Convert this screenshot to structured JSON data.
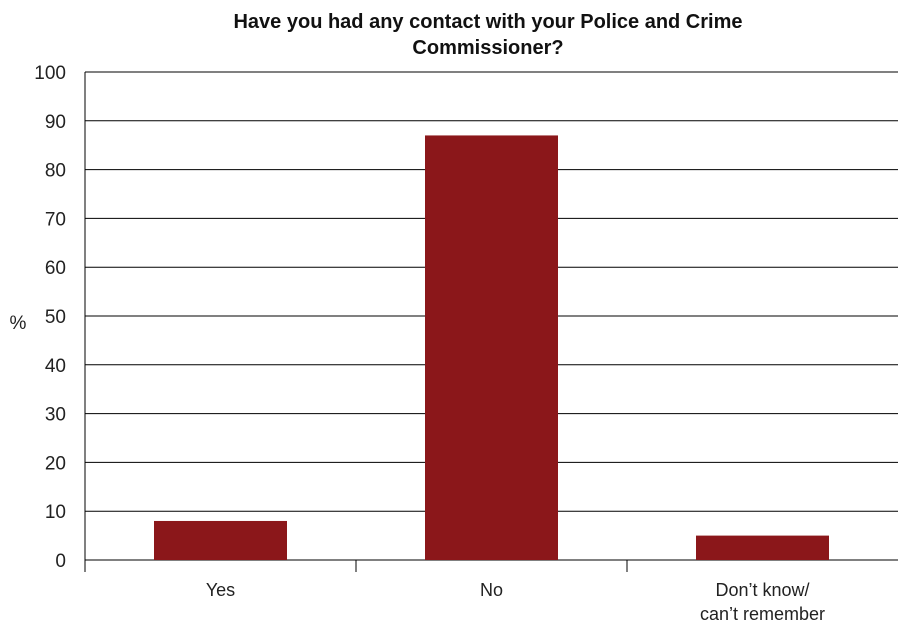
{
  "chart_data": {
    "type": "bar",
    "title_lines": [
      "Have you had any contact with your Police and Crime",
      "Commissioner?"
    ],
    "categories": [
      [
        "Yes"
      ],
      [
        "No"
      ],
      [
        "Don’t know/",
        "can’t remember"
      ]
    ],
    "values": [
      8,
      87,
      5
    ],
    "ylabel": "%",
    "ylim": [
      0,
      100
    ],
    "yticks": [
      "0",
      "10",
      "20",
      "30",
      "40",
      "50",
      "60",
      "70",
      "80",
      "90",
      "100"
    ],
    "grid": true,
    "bar_color": "#8b171a"
  }
}
